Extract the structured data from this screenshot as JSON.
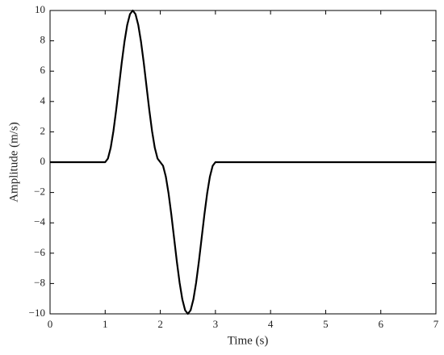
{
  "chart_data": {
    "type": "line",
    "xlabel": "Time (s)",
    "ylabel": "Amplitude (m/s)",
    "x": [
      0,
      1,
      1.05,
      1.1,
      1.15,
      1.2,
      1.25,
      1.3,
      1.35,
      1.4,
      1.45,
      1.5,
      1.55,
      1.6,
      1.65,
      1.7,
      1.75,
      1.8,
      1.85,
      1.9,
      1.95,
      2,
      2.05,
      2.1,
      2.15,
      2.2,
      2.25,
      2.3,
      2.35,
      2.4,
      2.45,
      2.5,
      2.55,
      2.6,
      2.65,
      2.7,
      2.75,
      2.8,
      2.85,
      2.9,
      2.95,
      3,
      7
    ],
    "values": [
      0,
      0,
      0.24,
      0.95,
      2.06,
      3.45,
      5,
      6.55,
      7.94,
      9.05,
      9.76,
      10,
      9.76,
      9.05,
      7.94,
      6.55,
      5,
      3.45,
      2.06,
      0.95,
      0.24,
      0,
      -0.24,
      -0.95,
      -2.06,
      -3.45,
      -5,
      -6.55,
      -7.94,
      -9.05,
      -9.76,
      -10,
      -9.76,
      -9.05,
      -7.94,
      -6.55,
      -5,
      -3.45,
      -2.06,
      -0.95,
      -0.24,
      0,
      0
    ],
    "color": "#000000",
    "xlim": [
      0,
      7
    ],
    "xticks": [
      0,
      1,
      2,
      3,
      4,
      5,
      6,
      7
    ],
    "ylim": [
      -10,
      10
    ],
    "yticks": [
      {
        "value": -10,
        "label": "−10"
      },
      {
        "value": -8,
        "label": "−8"
      },
      {
        "value": -6,
        "label": "−6"
      },
      {
        "value": -4,
        "label": "−4"
      },
      {
        "value": -2,
        "label": "−2"
      },
      0,
      2,
      4,
      6,
      8,
      10
    ]
  }
}
